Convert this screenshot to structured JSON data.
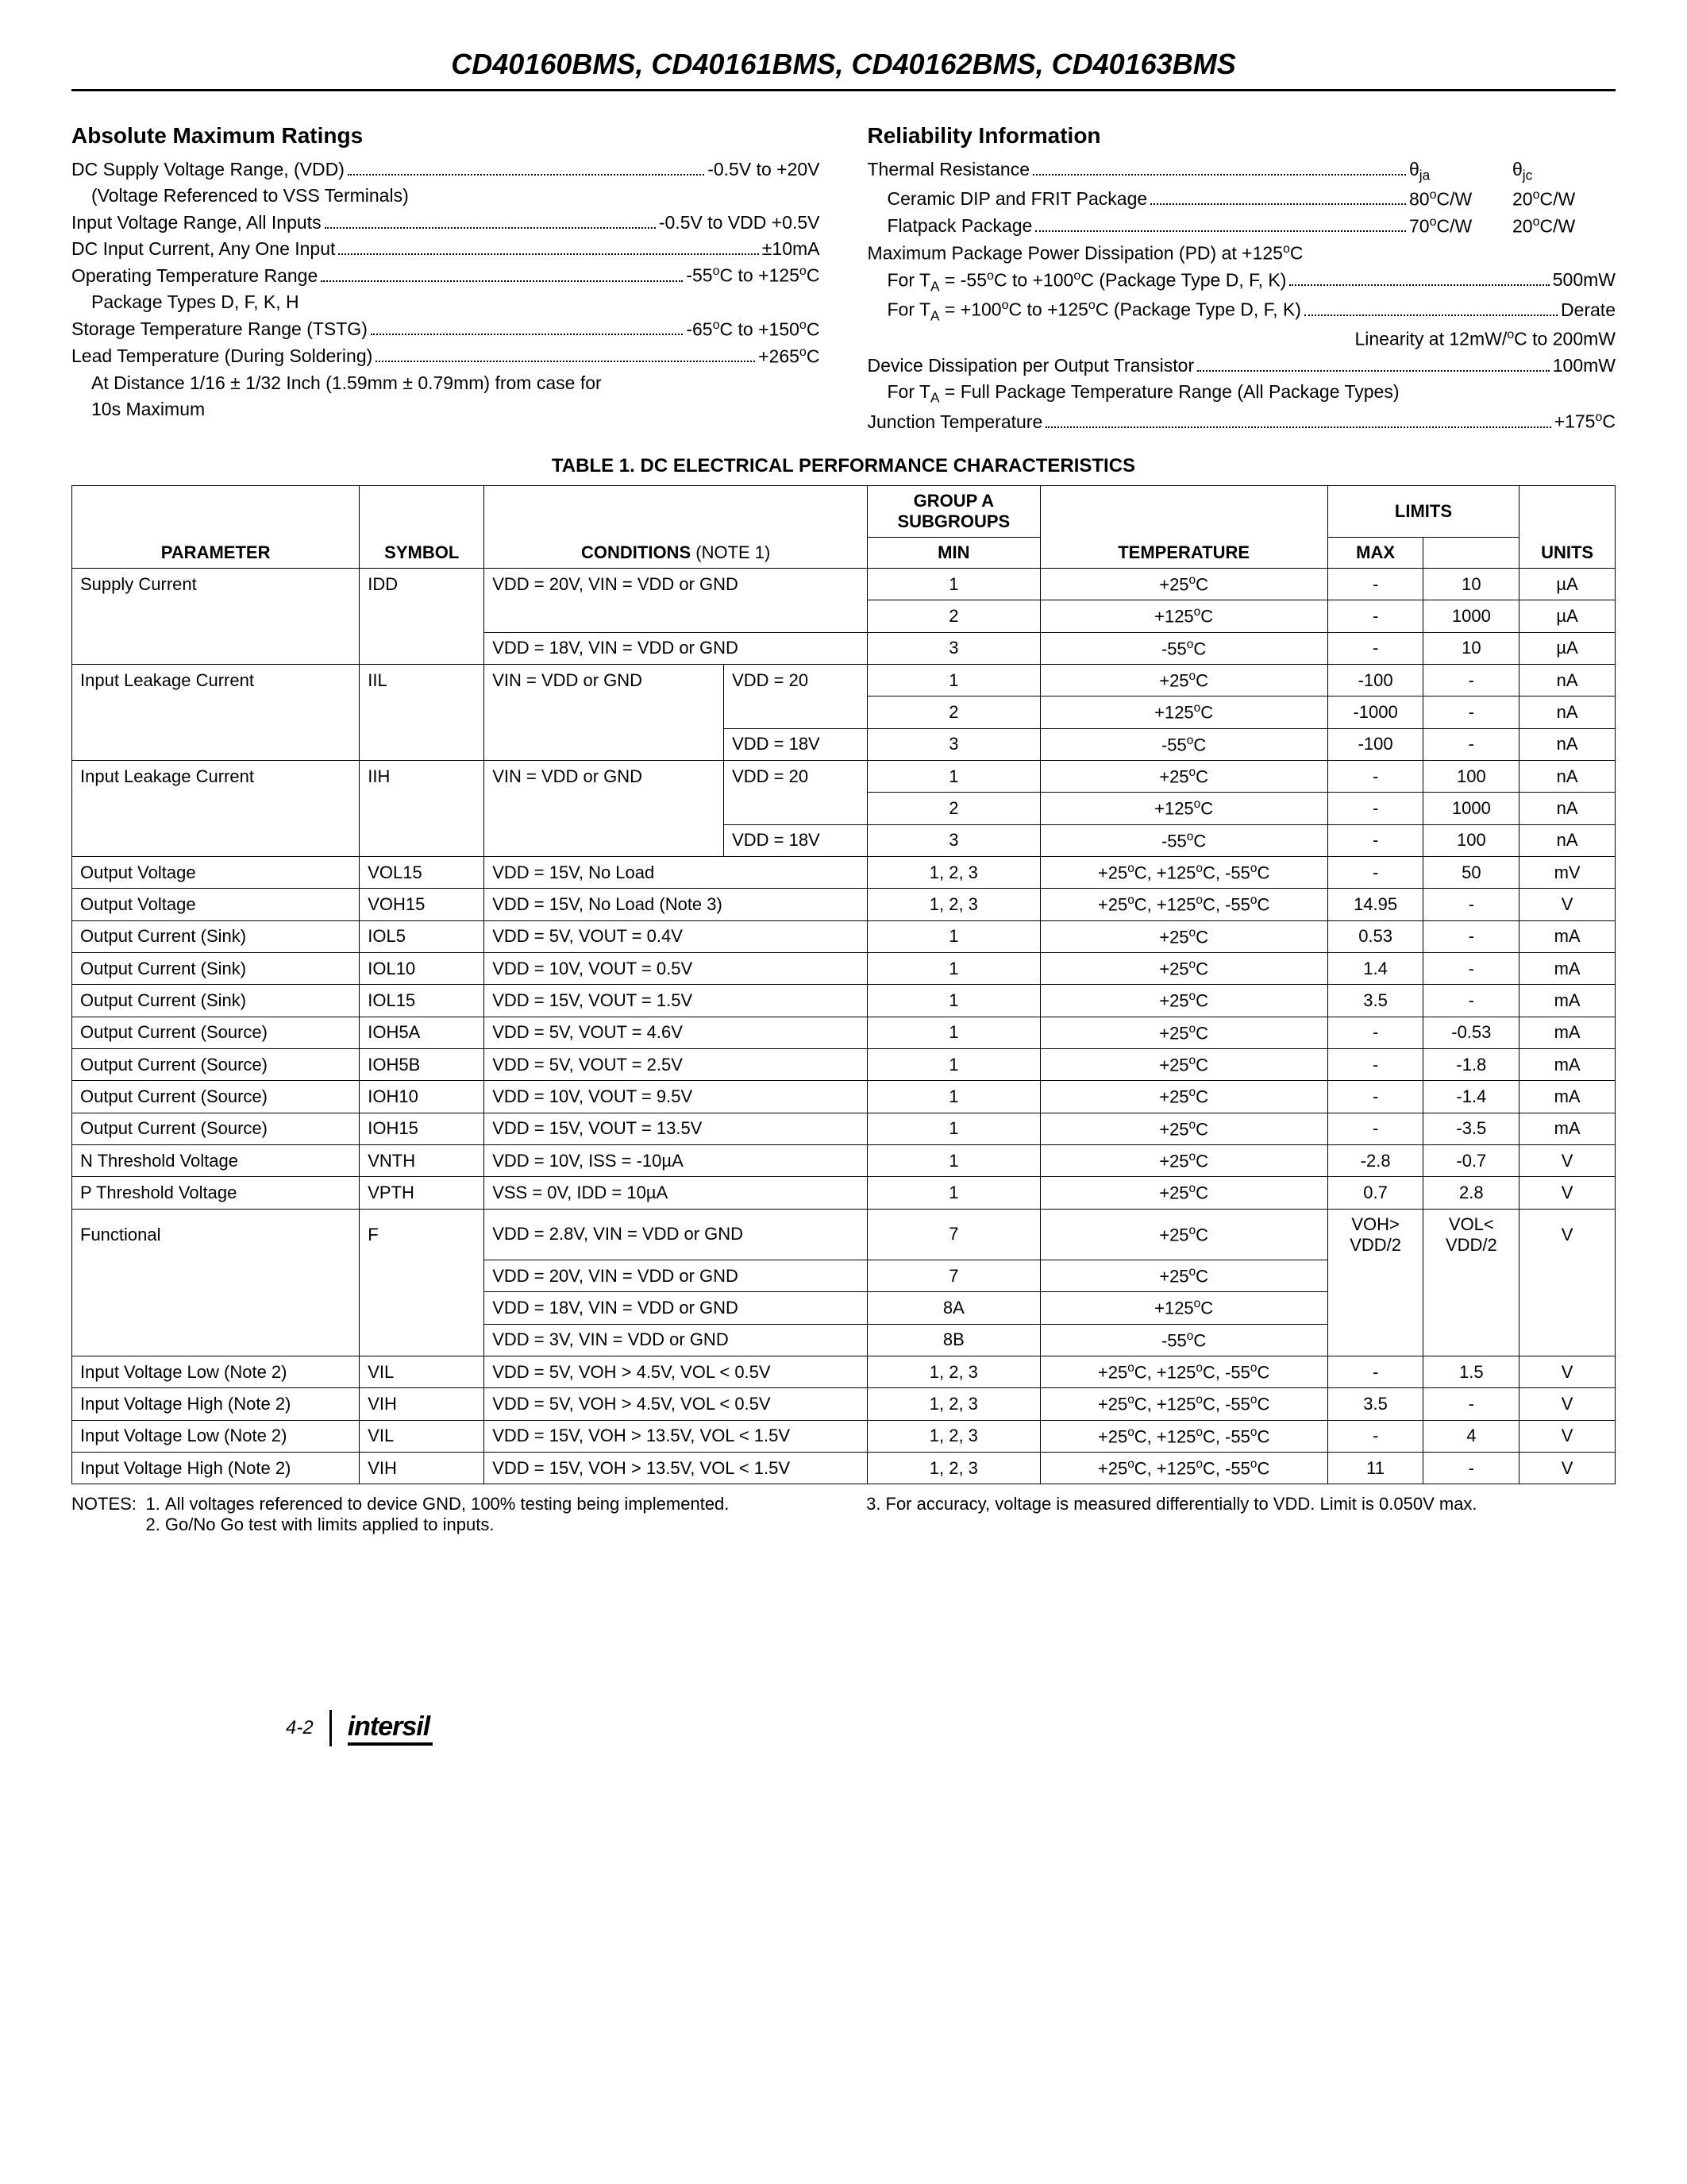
{
  "header_title": "CD40160BMS, CD40161BMS, CD40162BMS, CD40163BMS",
  "abs_max": {
    "title": "Absolute Maximum Ratings",
    "lines": [
      {
        "label": "DC Supply Voltage Range, (VDD)",
        "val": "-0.5V to +20V"
      },
      {
        "indent": true,
        "plain": "(Voltage Referenced to VSS Terminals)"
      },
      {
        "label": "Input Voltage Range, All Inputs",
        "val": "-0.5V to VDD +0.5V"
      },
      {
        "label": "DC Input Current, Any One Input",
        "val": "±10mA"
      },
      {
        "label": "Operating Temperature Range",
        "val": "-55°C to +125°C",
        "sup": true
      },
      {
        "indent": true,
        "plain": "Package Types D, F, K, H"
      },
      {
        "label": "Storage Temperature Range (TSTG)",
        "val": "-65°C to +150°C",
        "sup": true
      },
      {
        "label": "Lead Temperature (During Soldering)",
        "val": "+265°C",
        "sup": true
      },
      {
        "indent": true,
        "plain": "At Distance 1/16 ± 1/32 Inch (1.59mm ± 0.79mm) from case for"
      },
      {
        "indent": true,
        "plain": "10s Maximum"
      }
    ]
  },
  "reliability": {
    "title": "Reliability Information",
    "thermal_head": {
      "label": "Thermal Resistance",
      "h1": "θ<sub>ja</sub>",
      "h2": "θ<sub>jc</sub>"
    },
    "thermal_rows": [
      {
        "label": "Ceramic DIP and FRIT Package",
        "v1": "80°C/W",
        "v2": "20°C/W"
      },
      {
        "label": "Flatpack Package",
        "v1": "70°C/W",
        "v2": "20°C/W"
      }
    ],
    "lines": [
      {
        "plain": "Maximum Package Power Dissipation (PD) at +125°C"
      },
      {
        "label": "For T<sub>A</sub> = -55°C to +100°C (Package Type D, F, K)",
        "val": "500mW",
        "indent": true
      },
      {
        "label": "For T<sub>A</sub> = +100°C to +125°C (Package Type D, F, K)",
        "val": "Derate",
        "indent": true
      },
      {
        "plain_right": "Linearity at 12mW/°C to 200mW"
      },
      {
        "label": "Device Dissipation per Output Transistor",
        "val": "100mW"
      },
      {
        "indent": true,
        "plain": "For T<sub>A</sub> = Full Package Temperature Range (All Package Types)"
      },
      {
        "label": "Junction Temperature",
        "val": "+175°C"
      }
    ]
  },
  "table": {
    "title": "TABLE 1.  DC ELECTRICAL PERFORMANCE CHARACTERISTICS",
    "headers": {
      "param": "PARAMETER",
      "symbol": "SYMBOL",
      "cond": "CONDITIONS",
      "cond_note": "(NOTE 1)",
      "groupa": "GROUP A",
      "subgroups": "SUBGROUPS",
      "temp": "TEMPERATURE",
      "limits": "LIMITS",
      "min": "MIN",
      "max": "MAX",
      "units": "UNITS"
    }
  },
  "rows": {
    "r1": {
      "param": "Supply Current",
      "sym": "IDD",
      "cond": "VDD = 20V, VIN = VDD or GND",
      "sub": "1",
      "temp": "+25°C",
      "min": "-",
      "max": "10",
      "u": "µA"
    },
    "r2": {
      "sub": "2",
      "temp": "+125°C",
      "min": "-",
      "max": "1000",
      "u": "µA"
    },
    "r3": {
      "cond": "VDD = 18V, VIN = VDD or GND",
      "sub": "3",
      "temp": "-55°C",
      "min": "-",
      "max": "10",
      "u": "µA"
    },
    "r4": {
      "param": "Input Leakage Current",
      "sym": "IIL",
      "cond": "VIN = VDD or GND",
      "cond2": "VDD = 20",
      "sub": "1",
      "temp": "+25°C",
      "min": "-100",
      "max": "-",
      "u": "nA"
    },
    "r5": {
      "sub": "2",
      "temp": "+125°C",
      "min": "-1000",
      "max": "-",
      "u": "nA"
    },
    "r6": {
      "cond2": "VDD = 18V",
      "sub": "3",
      "temp": "-55°C",
      "min": "-100",
      "max": "-",
      "u": "nA"
    },
    "r7": {
      "param": "Input Leakage Current",
      "sym": "IIH",
      "cond": "VIN = VDD or GND",
      "cond2": "VDD = 20",
      "sub": "1",
      "temp": "+25°C",
      "min": "-",
      "max": "100",
      "u": "nA"
    },
    "r8": {
      "sub": "2",
      "temp": "+125°C",
      "min": "-",
      "max": "1000",
      "u": "nA"
    },
    "r9": {
      "cond2": "VDD = 18V",
      "sub": "3",
      "temp": "-55°C",
      "min": "-",
      "max": "100",
      "u": "nA"
    },
    "r10": {
      "param": "Output Voltage",
      "sym": "VOL15",
      "cond": "VDD = 15V, No Load",
      "sub": "1, 2, 3",
      "temp": "+25°C, +125°C, -55°C",
      "min": "-",
      "max": "50",
      "u": "mV"
    },
    "r11": {
      "param": "Output Voltage",
      "sym": "VOH15",
      "cond": "VDD = 15V, No Load (Note 3)",
      "sub": "1, 2, 3",
      "temp": "+25°C, +125°C, -55°C",
      "min": "14.95",
      "max": "-",
      "u": "V"
    },
    "r12": {
      "param": "Output Current (Sink)",
      "sym": "IOL5",
      "cond": "VDD = 5V, VOUT = 0.4V",
      "sub": "1",
      "temp": "+25°C",
      "min": "0.53",
      "max": "-",
      "u": "mA"
    },
    "r13": {
      "param": "Output Current (Sink)",
      "sym": "IOL10",
      "cond": "VDD = 10V, VOUT = 0.5V",
      "sub": "1",
      "temp": "+25°C",
      "min": "1.4",
      "max": "-",
      "u": "mA"
    },
    "r14": {
      "param": "Output Current (Sink)",
      "sym": "IOL15",
      "cond": "VDD = 15V, VOUT = 1.5V",
      "sub": "1",
      "temp": "+25°C",
      "min": "3.5",
      "max": "-",
      "u": "mA"
    },
    "r15": {
      "param": "Output Current (Source)",
      "sym": "IOH5A",
      "cond": "VDD = 5V, VOUT = 4.6V",
      "sub": "1",
      "temp": "+25°C",
      "min": "-",
      "max": "-0.53",
      "u": "mA"
    },
    "r16": {
      "param": "Output Current (Source)",
      "sym": "IOH5B",
      "cond": "VDD = 5V, VOUT = 2.5V",
      "sub": "1",
      "temp": "+25°C",
      "min": "-",
      "max": "-1.8",
      "u": "mA"
    },
    "r17": {
      "param": "Output Current (Source)",
      "sym": "IOH10",
      "cond": "VDD = 10V, VOUT = 9.5V",
      "sub": "1",
      "temp": "+25°C",
      "min": "-",
      "max": "-1.4",
      "u": "mA"
    },
    "r18": {
      "param": "Output Current (Source)",
      "sym": "IOH15",
      "cond": "VDD = 15V, VOUT = 13.5V",
      "sub": "1",
      "temp": "+25°C",
      "min": "-",
      "max": "-3.5",
      "u": "mA"
    },
    "r19": {
      "param": "N Threshold Voltage",
      "sym": "VNTH",
      "cond": "VDD = 10V, ISS = -10µA",
      "sub": "1",
      "temp": "+25°C",
      "min": "-2.8",
      "max": "-0.7",
      "u": "V"
    },
    "r20": {
      "param": "P Threshold Voltage",
      "sym": "VPTH",
      "cond": "VSS = 0V, IDD = 10µA",
      "sub": "1",
      "temp": "+25°C",
      "min": "0.7",
      "max": "2.8",
      "u": "V"
    },
    "r21": {
      "param": "Functional",
      "sym": "F",
      "cond": "VDD = 2.8V, VIN = VDD or GND",
      "sub": "7",
      "temp": "+25°C",
      "min": "VOH> VDD/2",
      "max": "VOL< VDD/2",
      "u": "V"
    },
    "r22": {
      "cond": "VDD = 20V, VIN = VDD or GND",
      "sub": "7",
      "temp": "+25°C"
    },
    "r23": {
      "cond": "VDD = 18V, VIN = VDD or GND",
      "sub": "8A",
      "temp": "+125°C"
    },
    "r24": {
      "cond": "VDD = 3V, VIN = VDD or GND",
      "sub": "8B",
      "temp": "-55°C"
    },
    "r25": {
      "param": "Input Voltage Low (Note 2)",
      "sym": "VIL",
      "cond": "VDD = 5V, VOH > 4.5V, VOL < 0.5V",
      "sub": "1, 2, 3",
      "temp": "+25°C, +125°C, -55°C",
      "min": "-",
      "max": "1.5",
      "u": "V"
    },
    "r26": {
      "param": "Input Voltage High (Note 2)",
      "sym": "VIH",
      "cond": "VDD = 5V, VOH > 4.5V, VOL < 0.5V",
      "sub": "1, 2, 3",
      "temp": "+25°C, +125°C, -55°C",
      "min": "3.5",
      "max": "-",
      "u": "V"
    },
    "r27": {
      "param": "Input Voltage Low (Note 2)",
      "sym": "VIL",
      "cond": "VDD = 15V, VOH > 13.5V, VOL < 1.5V",
      "sub": "1, 2, 3",
      "temp": "+25°C, +125°C, -55°C",
      "min": "-",
      "max": "4",
      "u": "V"
    },
    "r28": {
      "param": "Input Voltage High (Note 2)",
      "sym": "VIH",
      "cond": "VDD = 15V, VOH > 13.5V, VOL < 1.5V",
      "sub": "1, 2, 3",
      "temp": "+25°C, +125°C, -55°C",
      "min": "11",
      "max": "-",
      "u": "V"
    }
  },
  "notes": {
    "lead": "NOTES:",
    "n1": "All voltages referenced to device GND, 100% testing being implemented.",
    "n2": "Go/No Go test with limits applied to inputs.",
    "n3": "For accuracy, voltage is measured differentially to VDD. Limit is 0.050V max."
  },
  "footer": {
    "page": "4-2",
    "brand": "intersil"
  }
}
